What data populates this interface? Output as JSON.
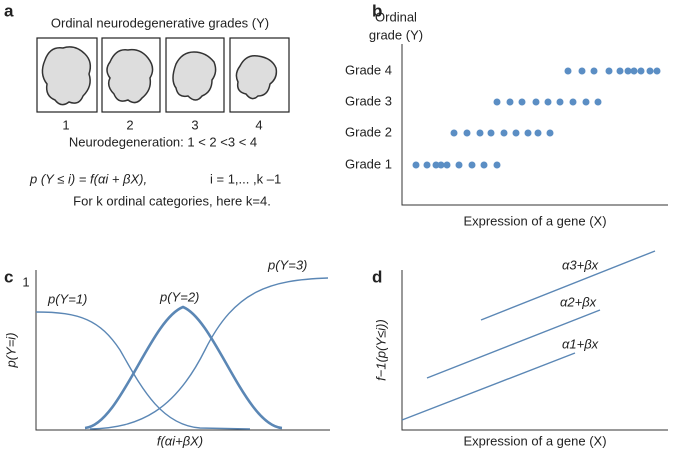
{
  "panels": {
    "a": {
      "label": "a",
      "title": "Ordinal neurodegenerative grades (Y)",
      "grades": [
        "1",
        "2",
        "3",
        "4"
      ],
      "order": "Neurodegeneration: 1 < 2 <3 < 4",
      "formula": "p (Y ≤ i) = f(αi + βX),",
      "index": "i = 1,... ,k –1",
      "note": "For k ordinal categories, here k=4."
    },
    "b": {
      "label": "b",
      "y_label": [
        "Ordinal",
        "grade (Y)"
      ],
      "categories": [
        "Grade 4",
        "Grade 3",
        "Grade 2",
        "Grade 1"
      ],
      "x_label": "Expression of a gene (X)"
    },
    "c": {
      "label": "c",
      "y_top": "1",
      "curves": [
        "p(Y=1)",
        "p(Y=2)",
        "p(Y=3)"
      ],
      "y_label": "p(Y=i)",
      "x_label": "f(αi+βX)"
    },
    "d": {
      "label": "d",
      "lines": [
        "α3+βx",
        "α2+βx",
        "α1+βx"
      ],
      "y_label": "f−1(p(Y≤i))",
      "x_label": "Expression of a gene (X)"
    }
  }
}
